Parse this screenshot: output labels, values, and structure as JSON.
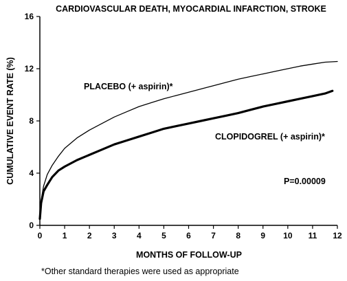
{
  "chart_data": {
    "type": "line",
    "title": "CARDIOVASCULAR DEATH, MYOCARDIAL INFARCTION, STROKE",
    "xlabel": "MONTHS OF FOLLOW-UP",
    "ylabel": "CUMULATIVE EVENT RATE (%)",
    "xlim": [
      0,
      12
    ],
    "ylim": [
      0,
      16
    ],
    "x_ticks": [
      0,
      1,
      2,
      3,
      4,
      5,
      6,
      7,
      8,
      9,
      10,
      11,
      12
    ],
    "y_ticks": [
      0,
      4,
      8,
      12,
      16
    ],
    "grid": false,
    "legend": "none (series labelled directly on the plot)",
    "series": [
      {
        "name": "PLACEBO (+ aspirin)*",
        "line": "thin",
        "color": "#000000",
        "x": [
          0,
          0.05,
          0.15,
          0.3,
          0.5,
          0.75,
          1,
          1.5,
          2,
          2.5,
          3,
          3.5,
          4,
          4.5,
          5,
          5.5,
          6,
          6.5,
          7,
          7.5,
          8,
          8.5,
          9,
          9.5,
          10,
          10.5,
          11,
          11.5,
          12
        ],
        "y": [
          0.5,
          1.9,
          3.0,
          3.9,
          4.6,
          5.3,
          5.9,
          6.7,
          7.3,
          7.8,
          8.3,
          8.7,
          9.1,
          9.4,
          9.7,
          9.95,
          10.2,
          10.45,
          10.7,
          10.95,
          11.2,
          11.4,
          11.6,
          11.8,
          12.0,
          12.2,
          12.35,
          12.5,
          12.55
        ]
      },
      {
        "name": "CLOPIDOGREL (+ aspirin)*",
        "line": "thick",
        "color": "#000000",
        "x": [
          0,
          0.05,
          0.15,
          0.3,
          0.5,
          0.75,
          1,
          1.5,
          2,
          2.5,
          3,
          3.5,
          4,
          4.5,
          5,
          5.5,
          6,
          6.5,
          7,
          7.5,
          8,
          8.5,
          9,
          9.5,
          10,
          10.5,
          11,
          11.5,
          11.8
        ],
        "y": [
          0.5,
          1.7,
          2.6,
          3.1,
          3.7,
          4.2,
          4.5,
          5.0,
          5.4,
          5.8,
          6.2,
          6.5,
          6.8,
          7.1,
          7.4,
          7.6,
          7.8,
          8.0,
          8.2,
          8.4,
          8.6,
          8.85,
          9.1,
          9.3,
          9.5,
          9.7,
          9.9,
          10.1,
          10.3
        ]
      }
    ],
    "annotations": [
      {
        "text": "P=0.00009"
      }
    ],
    "footnote": "*Other standard therapies were used as appropriate"
  }
}
